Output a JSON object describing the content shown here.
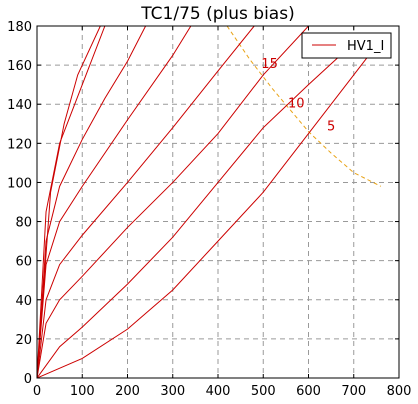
{
  "chart_data": {
    "type": "line",
    "title": "TC1/75 (plus bias)",
    "xlim": [
      0,
      800
    ],
    "ylim": [
      0,
      180
    ],
    "xticks": [
      0,
      100,
      200,
      300,
      400,
      500,
      600,
      700,
      800
    ],
    "yticks": [
      0,
      20,
      40,
      60,
      80,
      100,
      120,
      140,
      160,
      180
    ],
    "grid": true,
    "legend": {
      "placement": "top-right",
      "entries": [
        "HV1_I"
      ]
    },
    "series_color": "#cc0000",
    "reference_color": "#e8a317",
    "series": [
      {
        "x": [
          0,
          100,
          200,
          300,
          400,
          500,
          600,
          700,
          740
        ],
        "y": [
          0,
          10,
          25,
          45,
          70,
          95,
          125,
          155,
          167
        ]
      },
      {
        "x": [
          0,
          50,
          100,
          200,
          300,
          400,
          500,
          600,
          680
        ],
        "y": [
          0,
          16,
          26,
          48,
          72,
          100,
          128,
          150,
          167
        ]
      },
      {
        "x": [
          0,
          20,
          50,
          100,
          200,
          300,
          400,
          500,
          600
        ],
        "y": [
          0,
          28,
          40,
          52,
          77,
          100,
          125,
          155,
          180
        ]
      },
      {
        "x": [
          0,
          20,
          50,
          100,
          200,
          300,
          400,
          480
        ],
        "y": [
          0,
          40,
          58,
          73,
          100,
          128,
          157,
          180
        ]
      },
      {
        "x": [
          0,
          20,
          50,
          100,
          200,
          300,
          340
        ],
        "y": [
          0,
          58,
          80,
          98,
          132,
          165,
          180
        ]
      },
      {
        "x": [
          0,
          20,
          50,
          100,
          150,
          200,
          240
        ],
        "y": [
          0,
          70,
          98,
          122,
          143,
          162,
          180
        ]
      },
      {
        "x": [
          0,
          20,
          50,
          100,
          150
        ],
        "y": [
          0,
          85,
          120,
          150,
          180
        ]
      },
      {
        "x": [
          0,
          30,
          60,
          90,
          140
        ],
        "y": [
          0,
          95,
          130,
          155,
          180
        ]
      }
    ],
    "reference_curve": {
      "x": [
        420,
        470,
        520,
        560,
        600,
        650,
        700,
        760
      ],
      "y": [
        180,
        163,
        148,
        137,
        126,
        115,
        105,
        98
      ]
    },
    "annotations": [
      {
        "text": "15",
        "x": 514,
        "y": 161
      },
      {
        "text": "10",
        "x": 573,
        "y": 141
      },
      {
        "text": "5",
        "x": 650,
        "y": 129
      }
    ]
  }
}
